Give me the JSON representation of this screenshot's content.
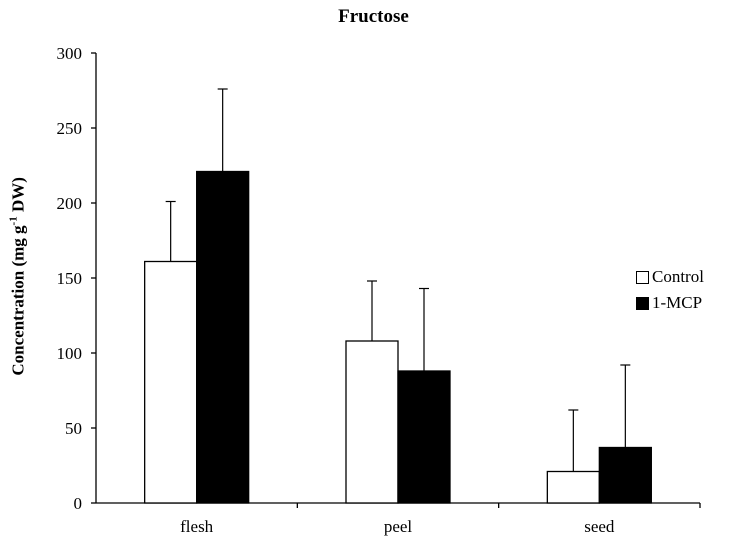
{
  "chart_data": {
    "type": "bar",
    "title": "Fructose",
    "ylabel_main": "Concentration (mg g",
    "ylabel_sup": "-1",
    "ylabel_tail": " DW)",
    "xlabel": "",
    "ylim": [
      0,
      300
    ],
    "yticks": [
      "0",
      "50",
      "100",
      "150",
      "200",
      "250",
      "300"
    ],
    "categories": [
      "flesh",
      "peel",
      "seed"
    ],
    "series": [
      {
        "name": "Control",
        "values": [
          161,
          108,
          21
        ],
        "error": [
          40,
          40,
          41
        ],
        "color": "#ffffff"
      },
      {
        "name": "1-MCP",
        "values": [
          221,
          88,
          37
        ],
        "error": [
          55,
          55,
          55
        ],
        "color": "#000000"
      }
    ],
    "legend_position": "right",
    "grid": false
  }
}
